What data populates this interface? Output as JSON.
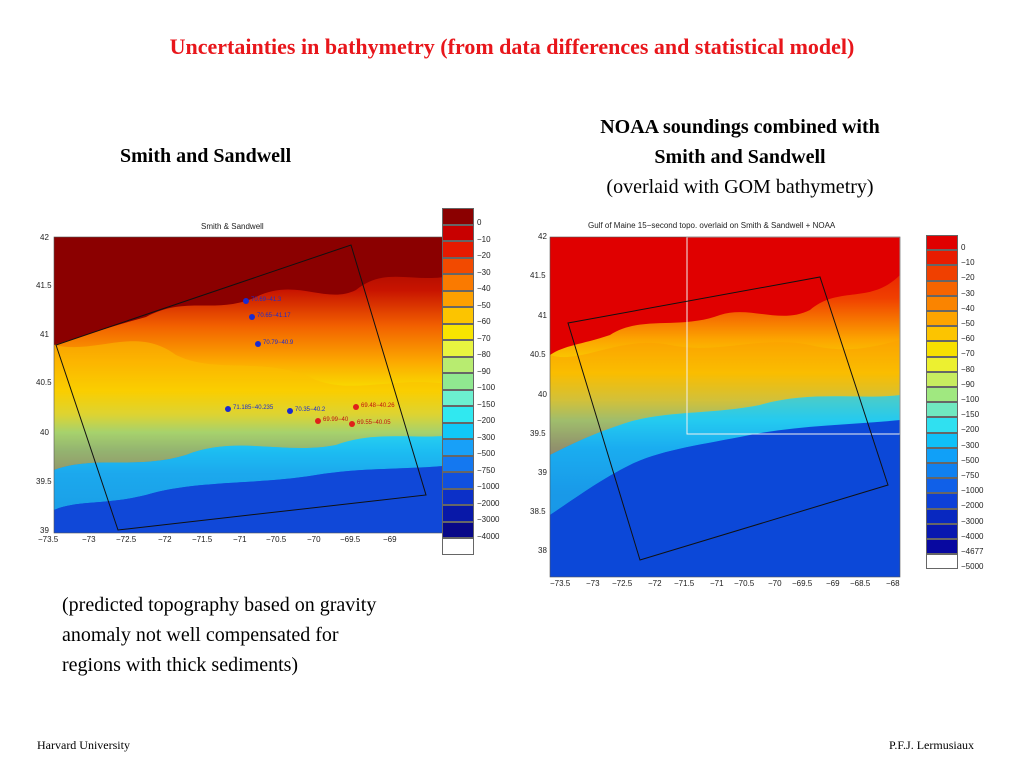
{
  "slide": {
    "title": "Uncertainties in bathymetry (from data differences and statistical model)",
    "left_heading": "Smith and Sandwell",
    "right_heading_line1": "NOAA soundings combined with",
    "right_heading_line2": "Smith and Sandwell",
    "right_heading_line3": "(overlaid with GOM bathymetry)",
    "caption_line1": "(predicted topography based on gravity",
    "caption_line2": "anomaly not well compensated for",
    "caption_line3": "regions with thick sediments)",
    "footer_left": "Harvard University",
    "footer_right": "P.F.J. Lermusiaux"
  },
  "left_map": {
    "title": "Smith & Sandwell",
    "y_ticks": [
      "42",
      "41.5",
      "41",
      "40.5",
      "40",
      "39.5",
      "39"
    ],
    "x_ticks": [
      "−73.5",
      "−73",
      "−72.5",
      "−72",
      "−71.5",
      "−71",
      "−70.5",
      "−70",
      "−69.5",
      "−69"
    ],
    "colorbar_labels": [
      "0",
      "−10",
      "−20",
      "−30",
      "−40",
      "−50",
      "−60",
      "−70",
      "−80",
      "−90",
      "−100",
      "−150",
      "−200",
      "−300",
      "−500",
      "−750",
      "−1000",
      "−2000",
      "−3000",
      "−4000"
    ],
    "colorbar_colors": [
      "#8b0000",
      "#c80000",
      "#e61a00",
      "#f24a00",
      "#fa7a00",
      "#fca000",
      "#fcc400",
      "#f8e400",
      "#e8f440",
      "#b8ec70",
      "#90e890",
      "#6cf0d0",
      "#30e8f0",
      "#10c8f8",
      "#18a0f8",
      "#1478f0",
      "#1050e0",
      "#0c30c8",
      "#0818a8",
      "#080888"
    ],
    "points": [
      {
        "label": "70.69−41.3",
        "color": "#1a2bd0"
      },
      {
        "label": "70.65−41.17",
        "color": "#1a2bd0"
      },
      {
        "label": "70.79−40.9",
        "color": "#1a2bd0"
      },
      {
        "label": "71.185−40.235",
        "color": "#1a2bd0"
      },
      {
        "label": "70.35−40.2",
        "color": "#1a2bd0"
      },
      {
        "label": "69.99−40",
        "color": "#e0201a"
      },
      {
        "label": "69.48−40.26",
        "color": "#e0201a"
      },
      {
        "label": "69.55−40.05",
        "color": "#e0201a"
      }
    ]
  },
  "right_map": {
    "title": "Gulf of Maine 15−second topo. overlaid on Smith & Sandwell + NOAA",
    "y_ticks": [
      "42",
      "41.5",
      "41",
      "40.5",
      "40",
      "39.5",
      "39",
      "38.5",
      "38"
    ],
    "x_ticks": [
      "−73.5",
      "−73",
      "−72.5",
      "−72",
      "−71.5",
      "−71",
      "−70.5",
      "−70",
      "−69.5",
      "−69",
      "−68.5",
      "−68"
    ],
    "colorbar_labels": [
      "0",
      "−10",
      "−20",
      "−30",
      "−40",
      "−50",
      "−60",
      "−70",
      "−80",
      "−90",
      "−100",
      "−150",
      "−200",
      "−300",
      "−500",
      "−750",
      "−1000",
      "−2000",
      "−3000",
      "−4000",
      "−4677",
      "−5000"
    ],
    "colorbar_colors": [
      "#e00000",
      "#e81c00",
      "#f04000",
      "#f66400",
      "#fa8400",
      "#fca400",
      "#fcc400",
      "#f8e000",
      "#ecf030",
      "#c8ec60",
      "#a0e880",
      "#70e8c0",
      "#30e0f0",
      "#10c0f8",
      "#10a0f8",
      "#1080f0",
      "#1060e8",
      "#0c40d8",
      "#0828c0",
      "#0818b0",
      "#0808a0",
      "#ffffff"
    ]
  }
}
